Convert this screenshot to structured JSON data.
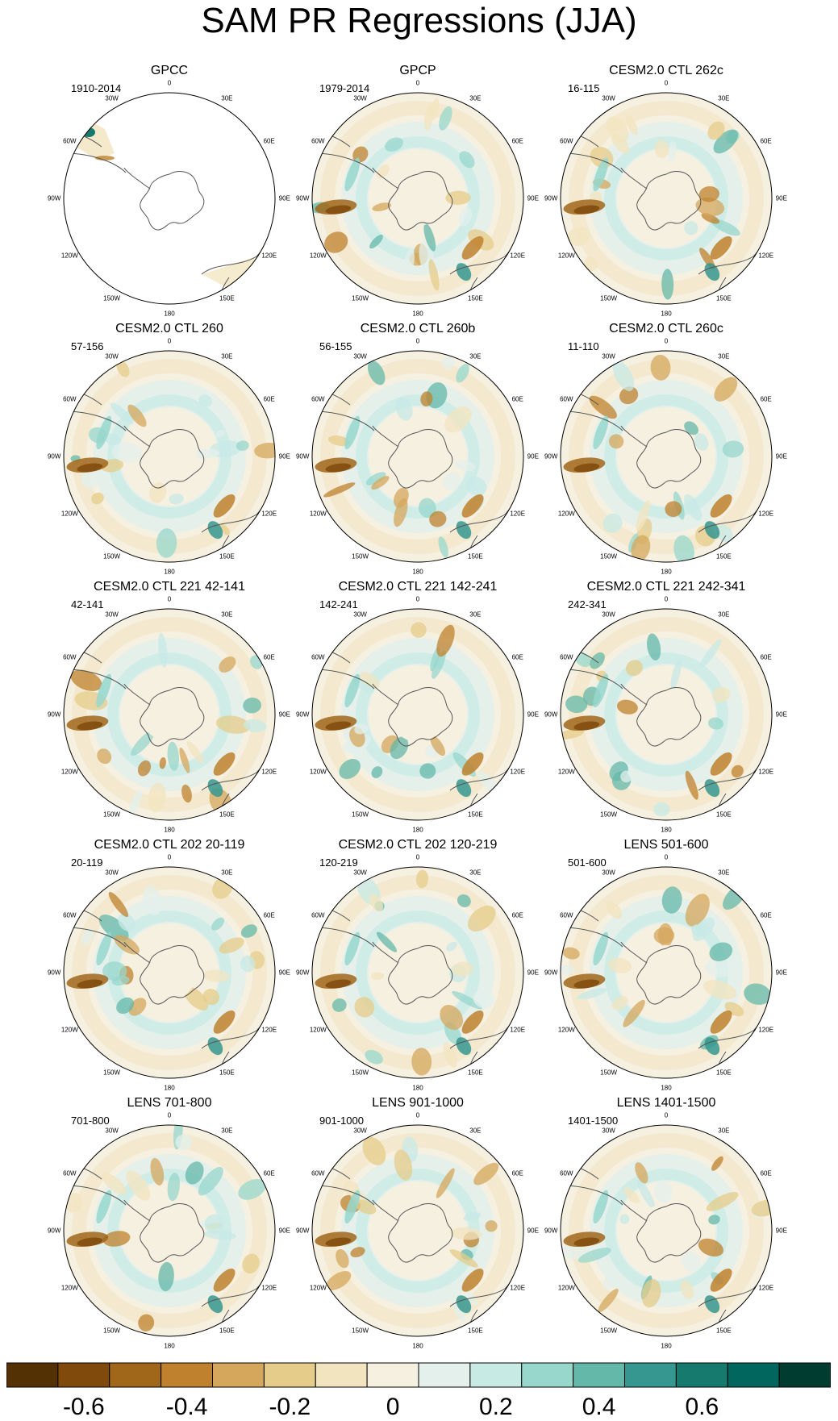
{
  "title": "SAM PR Regressions (JJA)",
  "longitude_labels": [
    "0",
    "30E",
    "60E",
    "90E",
    "120E",
    "150E",
    "180",
    "150W",
    "120W",
    "90W",
    "60W",
    "30W"
  ],
  "panels": [
    {
      "title": "GPCC",
      "period": "1910-2014",
      "pattern": "land"
    },
    {
      "title": "GPCP",
      "period": "1979-2014",
      "pattern": "field"
    },
    {
      "title": "CESM2.0 CTL 262c",
      "period": "16-115",
      "pattern": "field"
    },
    {
      "title": "CESM2.0 CTL 260",
      "period": "57-156",
      "pattern": "field"
    },
    {
      "title": "CESM2.0 CTL 260b",
      "period": "56-155",
      "pattern": "field"
    },
    {
      "title": "CESM2.0 CTL 260c",
      "period": "11-110",
      "pattern": "field"
    },
    {
      "title": "CESM2.0 CTL 221 42-141",
      "period": "42-141",
      "pattern": "field"
    },
    {
      "title": "CESM2.0 CTL 221 142-241",
      "period": "142-241",
      "pattern": "field"
    },
    {
      "title": "CESM2.0 CTL 221 242-341",
      "period": "242-341",
      "pattern": "field"
    },
    {
      "title": "CESM2.0 CTL 202 20-119",
      "period": "20-119",
      "pattern": "field"
    },
    {
      "title": "CESM2.0 CTL 202 120-219",
      "period": "120-219",
      "pattern": "field"
    },
    {
      "title": "LENS 501-600",
      "period": "501-600",
      "pattern": "field"
    },
    {
      "title": "LENS 701-800",
      "period": "701-800",
      "pattern": "field"
    },
    {
      "title": "LENS 901-1000",
      "period": "901-1000",
      "pattern": "field"
    },
    {
      "title": "LENS 1401-1500",
      "period": "1401-1500",
      "pattern": "field"
    }
  ],
  "colorbar": {
    "colors": [
      "#543005",
      "#7f4a0c",
      "#a0661a",
      "#bf812d",
      "#d4a75c",
      "#e6cc8a",
      "#f2e4bf",
      "#f5f0e0",
      "#e3f0ec",
      "#c7eae5",
      "#97d7cc",
      "#64b8aa",
      "#35978f",
      "#167a6e",
      "#01665e",
      "#003c30"
    ],
    "tick_labels": [
      "-0.6",
      "-0.4",
      "-0.2",
      "0",
      "0.2",
      "0.4",
      "0.6"
    ],
    "tick_values": [
      -0.6,
      -0.4,
      -0.2,
      0,
      0.2,
      0.4,
      0.6
    ]
  }
}
